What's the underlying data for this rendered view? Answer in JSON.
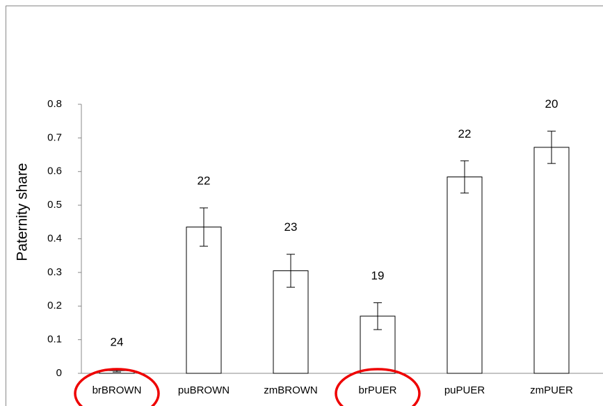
{
  "chart_data": {
    "type": "bar",
    "y_label": "Paternity share",
    "categories": [
      "brBROWN",
      "puBROWN",
      "zmBROWN",
      "brPUER",
      "puPUER",
      "zmPUER"
    ],
    "values": [
      0.008,
      0.435,
      0.305,
      0.17,
      0.584,
      0.672
    ],
    "errors": [
      0.004,
      0.057,
      0.049,
      0.04,
      0.048,
      0.048
    ],
    "annotations": [
      24,
      22,
      23,
      19,
      22,
      20
    ],
    "color": "#ffffff",
    "ylim": [
      0,
      0.8
    ],
    "yticks": [
      0,
      0.1,
      0.2,
      0.3,
      0.4,
      0.5,
      0.6,
      0.7,
      0.8
    ],
    "grid": false
  }
}
